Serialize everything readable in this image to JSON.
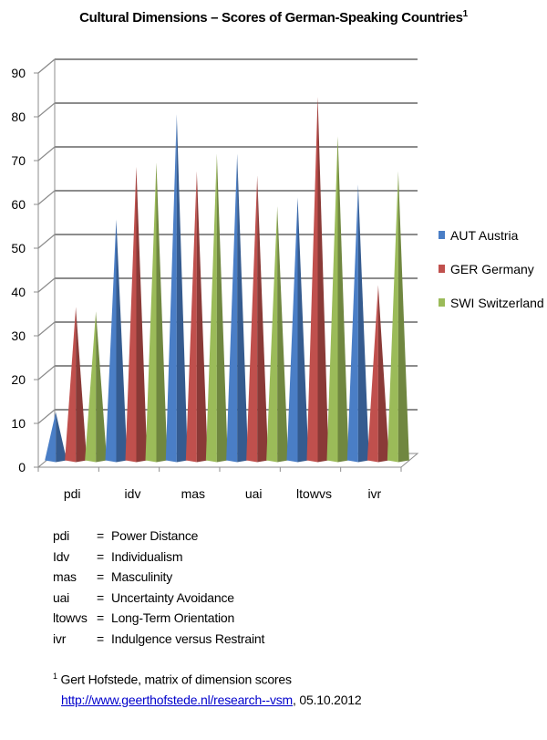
{
  "title": "Cultural Dimensions – Scores of German-Speaking Countries",
  "title_footnote_mark": "1",
  "chart_data": {
    "type": "bar",
    "style": "3d-pyramid",
    "categories": [
      "pdi",
      "idv",
      "mas",
      "uai",
      "ltowvs",
      "ivr"
    ],
    "series": [
      {
        "name": "AUT Austria",
        "color": "#4a7ec6",
        "values": [
          11,
          55,
          79,
          70,
          60,
          63
        ]
      },
      {
        "name": "GER Germany",
        "color": "#c0504d",
        "values": [
          35,
          67,
          66,
          65,
          83,
          40
        ]
      },
      {
        "name": "SWI Switzerland",
        "color": "#9bbb59",
        "values": [
          34,
          68,
          70,
          58,
          74,
          66
        ]
      }
    ],
    "ylim": [
      0,
      90
    ],
    "yticks": [
      "0",
      "10",
      "20",
      "30",
      "40",
      "50",
      "60",
      "70",
      "80",
      "90"
    ],
    "grid": true,
    "legend_position": "right"
  },
  "definitions": [
    {
      "abbr": "pdi",
      "eq": "=",
      "text": "Power Distance"
    },
    {
      "abbr": "Idv",
      "eq": "=",
      "text": "Individualism"
    },
    {
      "abbr": "mas",
      "eq": "=",
      "text": "Masculinity"
    },
    {
      "abbr": "uai",
      "eq": "=",
      "text": "Uncertainty Avoidance"
    },
    {
      "abbr": "ltowvs",
      "eq": "=",
      "text": "Long-Term Orientation"
    },
    {
      "abbr": "ivr",
      "eq": "=",
      "text": "Indulgence versus Restraint"
    }
  ],
  "footnote": {
    "mark": "1",
    "text": "Gert Hofstede, matrix of dimension scores",
    "link": "http://www.geerthofstede.nl/research--vsm",
    "date": ", 05.10.2012"
  }
}
